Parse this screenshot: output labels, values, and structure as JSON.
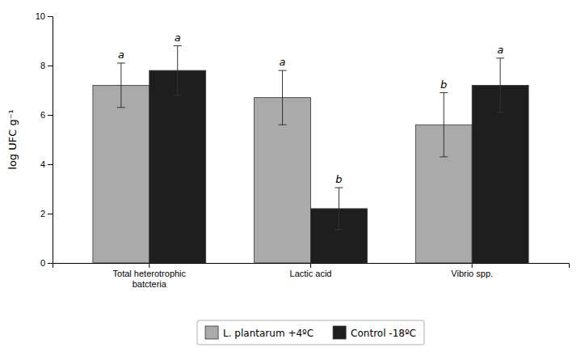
{
  "chart_data": {
    "type": "bar",
    "categories": [
      "Total heterotrophic\nbatcteria",
      "Lactic acid",
      "Vibrio spp."
    ],
    "ylabel": "log UFC g⁻¹",
    "ylim": [
      0,
      10
    ],
    "yticks": [
      0,
      2,
      4,
      6,
      8,
      10
    ],
    "legend": "bottom",
    "series": [
      {
        "name": "L. plantarum +4ºC",
        "color": "#aaaaaa",
        "values": [
          7.2,
          6.7,
          5.6
        ],
        "errors": [
          0.9,
          1.1,
          1.3
        ],
        "annotations": [
          "a",
          "a",
          "b"
        ]
      },
      {
        "name": "Control -18ºC",
        "color": "#1e1e1e",
        "values": [
          7.8,
          2.2,
          7.2
        ],
        "errors": [
          1.0,
          0.85,
          1.1
        ],
        "annotations": [
          "a",
          "b",
          "a"
        ]
      }
    ]
  }
}
